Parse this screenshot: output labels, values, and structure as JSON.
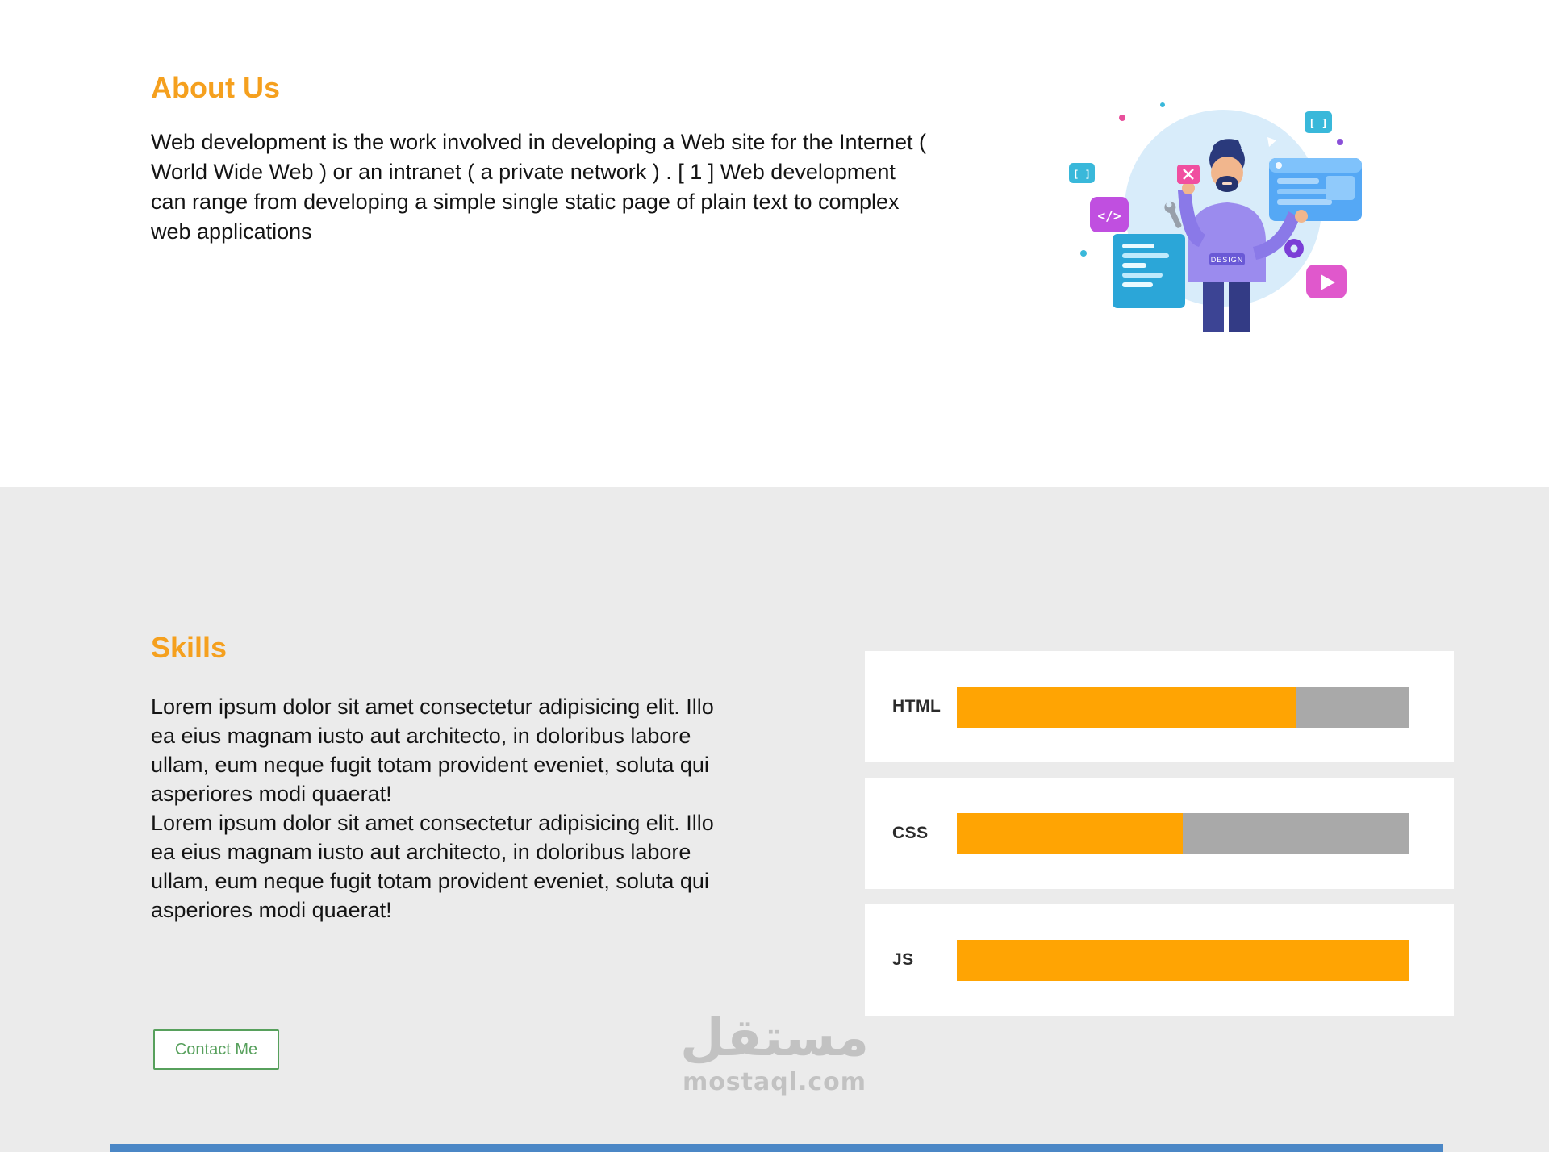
{
  "about": {
    "heading": "About Us",
    "paragraph": "Web development is the work involved in developing a Web site for the Internet ( World Wide Web ) or an intranet ( a private network ) . [ 1 ] Web development can range from developing a simple single static page of plain text to complex web applications"
  },
  "illustration": {
    "hoodie_text": "DESIGN",
    "code_badge": "</>",
    "bracket_badge": "[ ]"
  },
  "skills": {
    "heading": "Skills",
    "paragraphs": [
      "Lorem ipsum dolor sit amet consectetur adipisicing elit. Illo ea eius magnam iusto aut architecto, in doloribus labore ullam, eum neque fugit totam provident eveniet, soluta qui asperiores modi quaerat!",
      "Lorem ipsum dolor sit amet consectetur adipisicing elit. Illo ea eius magnam iusto aut architecto, in doloribus labore ullam, eum neque fugit totam provident eveniet, soluta qui asperiores modi quaerat!"
    ],
    "contact_button": "Contact Me",
    "bars": [
      {
        "label": "HTML",
        "percent": 75
      },
      {
        "label": "CSS",
        "percent": 50
      },
      {
        "label": "JS",
        "percent": 100
      }
    ]
  },
  "watermark": {
    "arabic": "مستقل",
    "latin": "mostaql.com"
  },
  "colors": {
    "heading_orange": "#f5a01e",
    "bar_fill": "#ffa403",
    "bar_track": "#a9a9a9",
    "button_green": "#57a05c",
    "section_bg": "#ebebeb",
    "footer_blue": "#4b87c6"
  }
}
